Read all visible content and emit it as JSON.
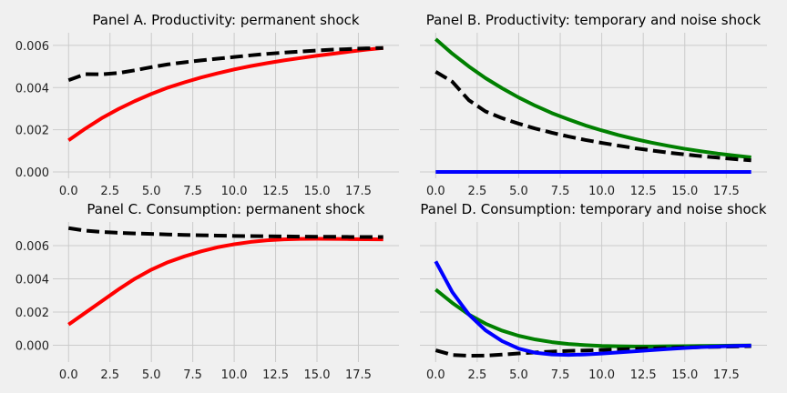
{
  "chart_data": [
    {
      "type": "line",
      "title": "Panel A. Productivity: permanent shock",
      "xlabel": "",
      "ylabel": "",
      "xlim": [
        -0.95,
        19.95
      ],
      "ylim": [
        -0.0003,
        0.0066
      ],
      "xticks": [
        "0.0",
        "2.5",
        "5.0",
        "7.5",
        "10.0",
        "12.5",
        "15.0",
        "17.5"
      ],
      "yticks": [
        "0.000",
        "0.002",
        "0.004",
        "0.006"
      ],
      "yticks_visible": true,
      "grid": true,
      "x": [
        0,
        1,
        2,
        3,
        4,
        5,
        6,
        7,
        8,
        9,
        10,
        11,
        12,
        13,
        14,
        15,
        16,
        17,
        18,
        19
      ],
      "series": [
        {
          "color": "#ff0000",
          "style": "solid",
          "values": [
            0.0015,
            0.00205,
            0.00255,
            0.00298,
            0.00336,
            0.0037,
            0.004,
            0.00425,
            0.00448,
            0.00468,
            0.00486,
            0.00502,
            0.00516,
            0.00529,
            0.0054,
            0.00551,
            0.00561,
            0.00571,
            0.0058,
            0.00588
          ]
        },
        {
          "color": "#000000",
          "style": "dashed",
          "values": [
            0.00435,
            0.00464,
            0.00463,
            0.00469,
            0.00482,
            0.00497,
            0.0051,
            0.0052,
            0.00529,
            0.00537,
            0.00545,
            0.00553,
            0.0056,
            0.00566,
            0.00571,
            0.00576,
            0.0058,
            0.00583,
            0.00586,
            0.00588
          ]
        }
      ]
    },
    {
      "type": "line",
      "title": "Panel B. Productivity: temporary and noise shock",
      "xlabel": "",
      "ylabel": "",
      "xlim": [
        -0.95,
        19.95
      ],
      "ylim": [
        -0.0003,
        0.0066
      ],
      "xticks": [
        "0.0",
        "2.5",
        "5.0",
        "7.5",
        "10.0",
        "12.5",
        "15.0",
        "17.5"
      ],
      "yticks": [
        "0.000",
        "0.002",
        "0.004",
        "0.006"
      ],
      "yticks_visible": false,
      "grid": true,
      "x": [
        0,
        1,
        2,
        3,
        4,
        5,
        6,
        7,
        8,
        9,
        10,
        11,
        12,
        13,
        14,
        15,
        16,
        17,
        18,
        19
      ],
      "series": [
        {
          "color": "#008000",
          "style": "solid",
          "values": [
            0.0063,
            0.00561,
            0.005,
            0.00445,
            0.00397,
            0.00353,
            0.00314,
            0.00279,
            0.00249,
            0.00221,
            0.00197,
            0.00175,
            0.00156,
            0.00139,
            0.00124,
            0.0011,
            0.00098,
            0.00087,
            0.00078,
            0.00069
          ]
        },
        {
          "color": "#000000",
          "style": "dashed",
          "values": [
            0.00475,
            0.00428,
            0.0034,
            0.00287,
            0.00255,
            0.00229,
            0.00206,
            0.00186,
            0.00168,
            0.00152,
            0.00138,
            0.00125,
            0.00113,
            0.00102,
            0.00092,
            0.00083,
            0.00075,
            0.00068,
            0.00061,
            0.00055
          ]
        },
        {
          "color": "#0000ff",
          "style": "solid",
          "values": [
            0,
            0,
            0,
            0,
            0,
            0,
            0,
            0,
            0,
            0,
            0,
            0,
            0,
            0,
            0,
            0,
            0,
            0,
            0,
            0
          ]
        }
      ]
    },
    {
      "type": "line",
      "title": "Panel C. Consumption: permanent shock",
      "xlabel": "",
      "ylabel": "",
      "xlim": [
        -0.95,
        19.95
      ],
      "ylim": [
        -0.00101,
        0.00742
      ],
      "xticks": [
        "0.0",
        "2.5",
        "5.0",
        "7.5",
        "10.0",
        "12.5",
        "15.0",
        "17.5"
      ],
      "yticks": [
        "0.000",
        "0.002",
        "0.004",
        "0.006"
      ],
      "yticks_visible": true,
      "grid": true,
      "x": [
        0,
        1,
        2,
        3,
        4,
        5,
        6,
        7,
        8,
        9,
        10,
        11,
        12,
        13,
        14,
        15,
        16,
        17,
        18,
        19
      ],
      "series": [
        {
          "color": "#ff0000",
          "style": "solid",
          "values": [
            0.00125,
            0.00195,
            0.00265,
            0.00335,
            0.004,
            0.00455,
            0.005,
            0.00535,
            0.00565,
            0.0059,
            0.00608,
            0.00622,
            0.00632,
            0.00637,
            0.0064,
            0.00641,
            0.0064,
            0.00639,
            0.00638,
            0.00637
          ]
        },
        {
          "color": "#000000",
          "style": "dashed",
          "values": [
            0.00705,
            0.0069,
            0.00682,
            0.00677,
            0.00673,
            0.0067,
            0.00667,
            0.00664,
            0.00662,
            0.0066,
            0.00658,
            0.00657,
            0.00656,
            0.00655,
            0.00654,
            0.00653,
            0.00653,
            0.00652,
            0.00652,
            0.00652
          ]
        }
      ]
    },
    {
      "type": "line",
      "title": "Panel D. Consumption: temporary and noise shock",
      "xlabel": "",
      "ylabel": "",
      "xlim": [
        -0.95,
        19.95
      ],
      "ylim": [
        -0.00101,
        0.00742
      ],
      "xticks": [
        "0.0",
        "2.5",
        "5.0",
        "7.5",
        "10.0",
        "12.5",
        "15.0",
        "17.5"
      ],
      "yticks": [
        "0.000",
        "0.002",
        "0.004",
        "0.006"
      ],
      "yticks_visible": false,
      "grid": true,
      "x": [
        0,
        1,
        2,
        3,
        4,
        5,
        6,
        7,
        8,
        9,
        10,
        11,
        12,
        13,
        14,
        15,
        16,
        17,
        18,
        19
      ],
      "series": [
        {
          "color": "#008000",
          "style": "solid",
          "values": [
            0.00335,
            0.00255,
            0.00185,
            0.0013,
            0.00088,
            0.00057,
            0.00035,
            0.00019,
            8e-05,
            1e-05,
            -4e-05,
            -6e-05,
            -7e-05,
            -7e-05,
            -6e-05,
            -5e-05,
            -4e-05,
            -3e-05,
            -2e-05,
            -1e-05
          ]
        },
        {
          "color": "#000000",
          "style": "dashed",
          "values": [
            -0.0003,
            -0.00058,
            -0.00063,
            -0.00062,
            -0.00056,
            -0.00049,
            -0.00043,
            -0.00038,
            -0.00034,
            -0.00031,
            -0.00028,
            -0.00025,
            -0.00022,
            -0.00019,
            -0.00016,
            -0.00013,
            -0.00011,
            -9e-05,
            -7e-05,
            -5e-05
          ]
        },
        {
          "color": "#0000ff",
          "style": "solid",
          "values": [
            0.00505,
            0.0032,
            0.00185,
            0.0009,
            0.00025,
            -0.0002,
            -0.00045,
            -0.00055,
            -0.00058,
            -0.00055,
            -0.0005,
            -0.00043,
            -0.00036,
            -0.00029,
            -0.00022,
            -0.00016,
            -0.00011,
            -7e-05,
            -4e-05,
            -2e-05
          ]
        }
      ]
    }
  ]
}
